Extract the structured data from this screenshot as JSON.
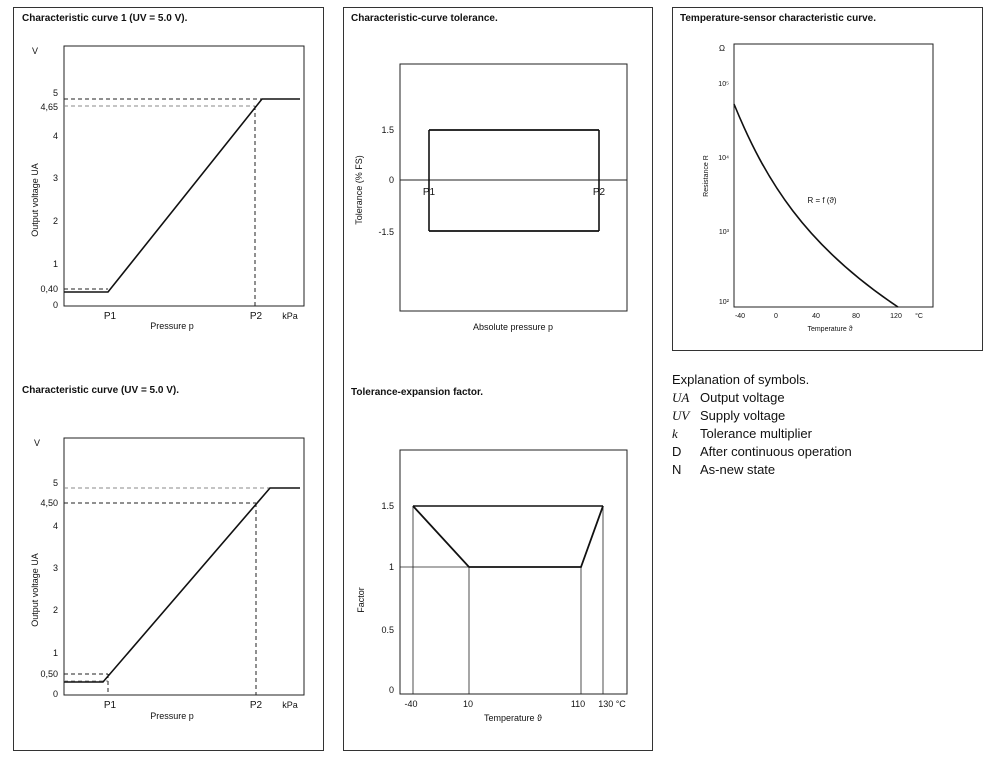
{
  "panels": {
    "curve1": {
      "title": "Characteristic curve 1 (UV = 5.0 V).",
      "y_unit": "V",
      "y_ticks": [
        "5",
        "4,65",
        "4",
        "3",
        "2",
        "1",
        "0,40",
        "0"
      ],
      "y_axis_label": "Output voltage UA",
      "x_ticks": [
        "P1",
        "P2",
        "kPa"
      ],
      "x_axis_label": "Pressure p"
    },
    "curve2": {
      "title": "Characteristic curve (UV = 5.0 V).",
      "y_unit": "V",
      "y_ticks": [
        "5",
        "4,50",
        "4",
        "3",
        "2",
        "1",
        "0,50",
        "0"
      ],
      "y_axis_label": "Output voltage UA",
      "x_ticks": [
        "P1",
        "P2",
        "kPa"
      ],
      "x_axis_label": "Pressure p"
    },
    "tolerance": {
      "title": "Characteristic-curve tolerance.",
      "y_ticks": [
        "1.5",
        "0",
        "-1.5"
      ],
      "y_axis_label": "Tolerance (% FS)",
      "point_labels": [
        "P1",
        "P2"
      ],
      "x_axis_label": "Absolute pressure p"
    },
    "expansion": {
      "title": "Tolerance-expansion factor.",
      "y_ticks": [
        "1.5",
        "1",
        "0.5",
        "0"
      ],
      "y_axis_label": "Factor",
      "x_ticks": [
        "-40",
        "10",
        "110",
        "130 °C"
      ],
      "x_axis_label": "Temperature ϑ"
    },
    "sensor": {
      "title": "Temperature-sensor characteristic curve.",
      "y_unit": "Ω",
      "y_ticks": [
        "10⁵",
        "10⁴",
        "10³",
        "10²"
      ],
      "y_axis_label": "Resistance R",
      "x_ticks": [
        "-40",
        "0",
        "40",
        "80",
        "120",
        "°C"
      ],
      "x_axis_label": "Temperature ϑ",
      "curve_label": "R = f (ϑ)"
    }
  },
  "legend": {
    "title": "Explanation of symbols.",
    "items": [
      {
        "symbol": "UA",
        "text": "Output voltage"
      },
      {
        "symbol": "UV",
        "text": "Supply voltage"
      },
      {
        "symbol": "k",
        "text": "Tolerance multiplier"
      },
      {
        "symbol": "D",
        "text": "After continuous operation"
      },
      {
        "symbol": "N",
        "text": "As-new state"
      }
    ]
  },
  "chart_data": [
    {
      "type": "line",
      "title": "Characteristic curve 1 (UV = 5.0 V).",
      "xlabel": "Pressure p",
      "ylabel": "Output voltage UA",
      "x": [
        "P1",
        "P2"
      ],
      "series": [
        {
          "values": [
            0.4,
            4.65
          ]
        }
      ],
      "ylim": [
        0,
        5
      ]
    },
    {
      "type": "line",
      "title": "Characteristic curve (UV = 5.0 V).",
      "xlabel": "Pressure p",
      "ylabel": "Output voltage UA",
      "x": [
        "P1",
        "P2"
      ],
      "series": [
        {
          "values": [
            0.5,
            4.5
          ]
        }
      ],
      "ylim": [
        0,
        5
      ]
    },
    {
      "type": "line",
      "title": "Characteristic-curve tolerance.",
      "xlabel": "Absolute pressure p",
      "ylabel": "Tolerance (% FS)",
      "x": [
        "P1",
        "P2"
      ],
      "series": [
        {
          "values": [
            1.5,
            1.5
          ]
        },
        {
          "values": [
            -1.5,
            -1.5
          ]
        }
      ]
    },
    {
      "type": "line",
      "title": "Tolerance-expansion factor.",
      "xlabel": "Temperature ϑ",
      "ylabel": "Factor",
      "x": [
        -40,
        10,
        110,
        130
      ],
      "series": [
        {
          "values": [
            1.5,
            1,
            1,
            1.5
          ]
        }
      ],
      "ylim": [
        0,
        1.5
      ]
    },
    {
      "type": "line",
      "title": "Temperature-sensor characteristic curve.",
      "xlabel": "Temperature ϑ",
      "ylabel": "Resistance R",
      "yscale": "log",
      "x": [
        -40,
        0,
        40,
        80,
        120
      ],
      "series": [
        {
          "name": "R = f (ϑ)",
          "values": [
            50000,
            9000,
            1400,
            350,
            100
          ]
        }
      ]
    }
  ]
}
